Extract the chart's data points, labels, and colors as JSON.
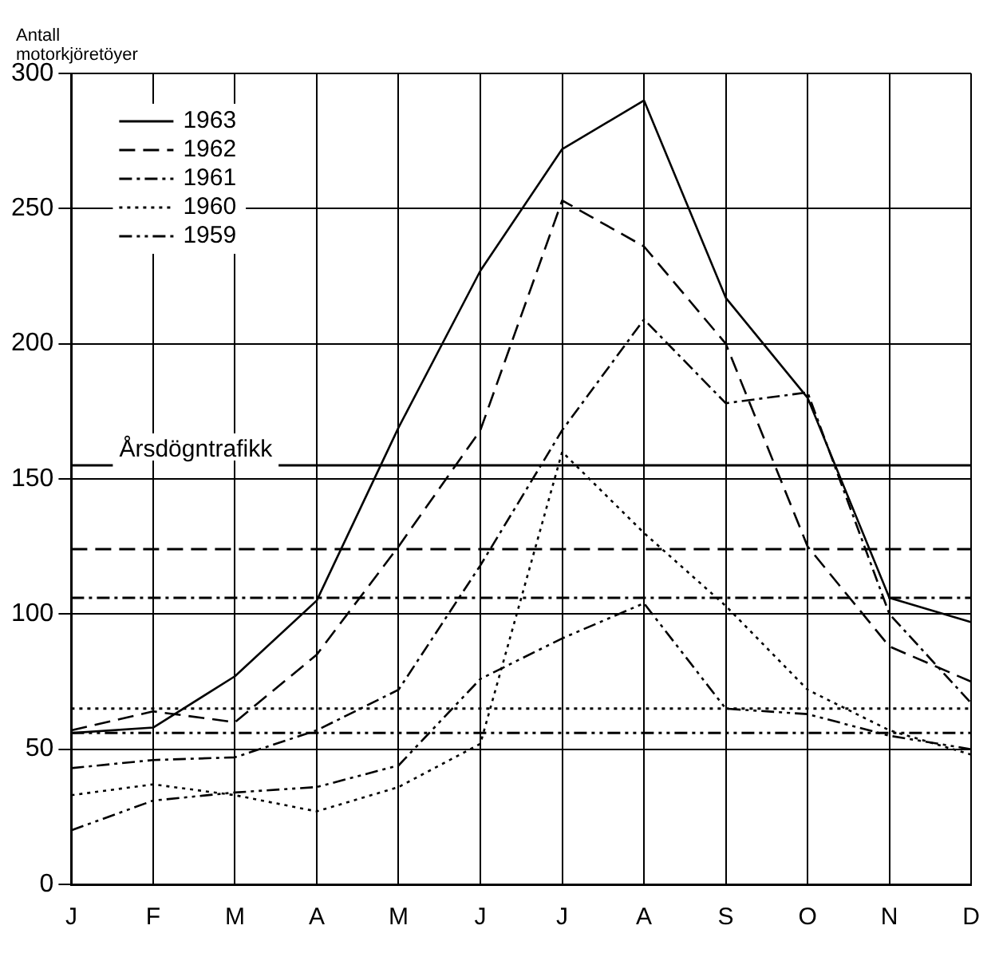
{
  "chart_data": {
    "type": "line",
    "ylabel": "Antall motorkjöretöyer",
    "categories": [
      "J",
      "F",
      "M",
      "A",
      "M",
      "J",
      "J",
      "A",
      "S",
      "O",
      "N",
      "D"
    ],
    "series": [
      {
        "name": "1963",
        "color": "#000000",
        "line_style": "solid",
        "values": [
          56,
          58,
          77,
          105,
          169,
          227,
          272,
          290,
          217,
          180,
          106,
          97
        ]
      },
      {
        "name": "1962",
        "color": "#000000",
        "line_style": "dashed",
        "values": [
          57,
          64,
          60,
          85,
          125,
          168,
          253,
          236,
          200,
          125,
          88,
          75
        ]
      },
      {
        "name": "1961",
        "color": "#000000",
        "line_style": "dashdot",
        "values": [
          43,
          46,
          47,
          57,
          72,
          118,
          168,
          209,
          178,
          182,
          100,
          67
        ]
      },
      {
        "name": "1960",
        "color": "#000000",
        "line_style": "dotted",
        "values": [
          33,
          37,
          33,
          27,
          36,
          52,
          160,
          130,
          103,
          72,
          57,
          48
        ]
      },
      {
        "name": "1959",
        "color": "#000000",
        "line_style": "dashdotdot",
        "values": [
          20,
          31,
          34,
          36,
          44,
          76,
          91,
          104,
          65,
          63,
          55,
          50
        ]
      }
    ],
    "ref_lines": [
      {
        "axis": "y",
        "value": 155,
        "label": "Årsdögntrafikk",
        "color": "#000000",
        "line_style": "solid"
      },
      {
        "axis": "y",
        "value": 124,
        "color": "#000000",
        "line_style": "dashed"
      },
      {
        "axis": "y",
        "value": 106,
        "color": "#000000",
        "line_style": "dashdot"
      },
      {
        "axis": "y",
        "value": 65,
        "color": "#000000",
        "line_style": "dotted"
      },
      {
        "axis": "y",
        "value": 56,
        "color": "#000000",
        "line_style": "dashdotdot"
      }
    ],
    "ylim": [
      0,
      300
    ],
    "yticks": [
      0,
      50,
      100,
      150,
      200,
      250,
      300
    ],
    "grid": true,
    "legend": "top left",
    "marker": "none"
  }
}
